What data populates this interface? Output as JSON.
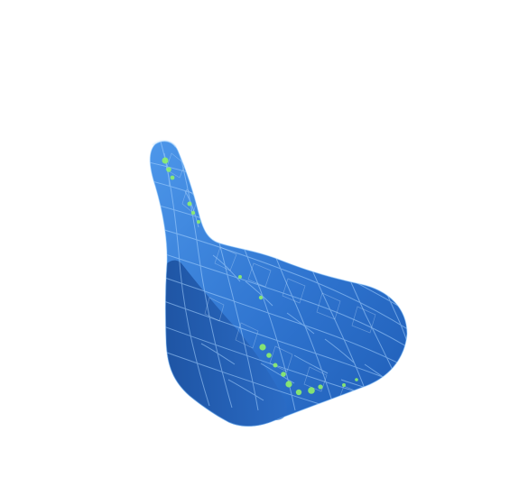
{
  "scene": {
    "subject": "golf-club-head-mesh",
    "colors": {
      "background": "#ffffff",
      "body_light": "#4a92e6",
      "body_mid": "#2f74cf",
      "body_dark": "#1b4f9d",
      "mesh_line": "#a9d4ff",
      "highlight_green": "#8ff06b"
    }
  }
}
